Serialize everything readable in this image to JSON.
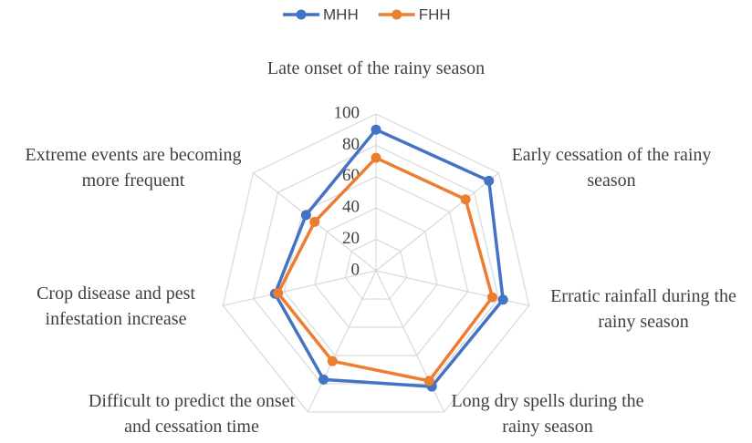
{
  "chart_data": {
    "type": "radar",
    "categories": [
      "Late onset of the rainy season",
      "Early cessation of the rainy season",
      "Erratic rainfall during the rainy season",
      "Long dry spells during the rainy season",
      "Difficult to predict the onset and cessation time",
      "Crop disease and pest infestation increase",
      "Extreme events are becoming more frequent"
    ],
    "series": [
      {
        "name": "MHH",
        "color": "#4472c4",
        "values": [
          90,
          92,
          83,
          82,
          77,
          66,
          57
        ]
      },
      {
        "name": "FHH",
        "color": "#ed7d31",
        "values": [
          72,
          73,
          76,
          78,
          64,
          64,
          50
        ]
      }
    ],
    "rlim": [
      0,
      100
    ],
    "rticks": [
      0,
      20,
      40,
      60,
      80,
      100
    ],
    "grid": true,
    "legend": "top"
  }
}
